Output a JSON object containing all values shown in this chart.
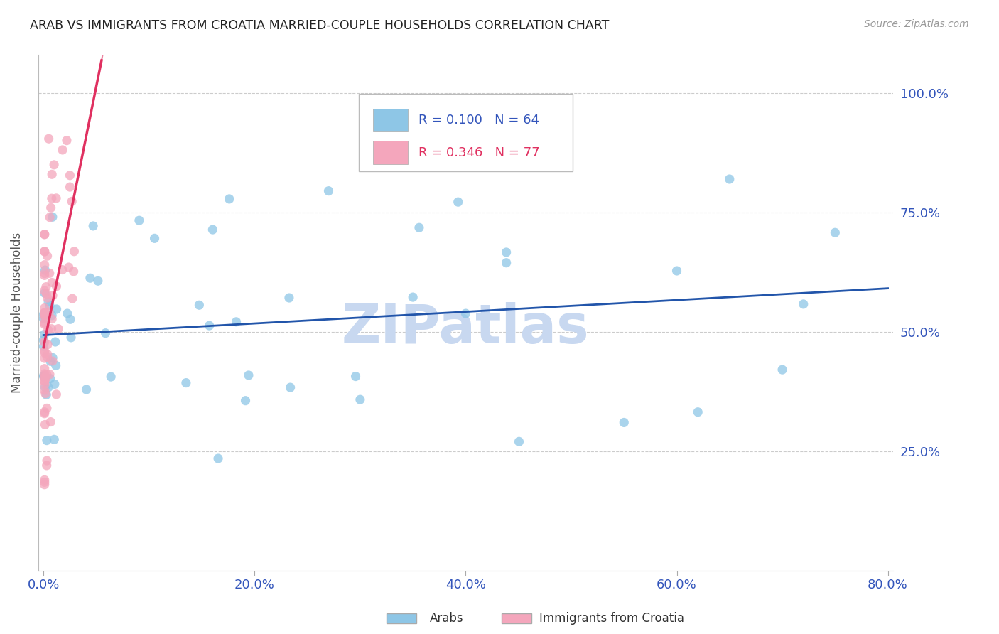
{
  "title": "ARAB VS IMMIGRANTS FROM CROATIA MARRIED-COUPLE HOUSEHOLDS CORRELATION CHART",
  "source": "Source: ZipAtlas.com",
  "ylabel": "Married-couple Households",
  "R1": 0.1,
  "N1": 64,
  "R2": 0.346,
  "N2": 77,
  "color_blue": "#8ec6e6",
  "color_pink": "#f4a6bc",
  "trendline_blue": "#2255aa",
  "trendline_pink": "#e03060",
  "watermark": "ZIPatlas",
  "watermark_color": "#c8d8f0",
  "title_color": "#222222",
  "axis_label_color": "#3355bb",
  "grid_color": "#cccccc",
  "legend_blue_R": "R = 0.100",
  "legend_blue_N": "N = 64",
  "legend_pink_R": "R = 0.346",
  "legend_pink_N": "N = 77",
  "legend_label_1": "Arabs",
  "legend_label_2": "Immigrants from Croatia"
}
